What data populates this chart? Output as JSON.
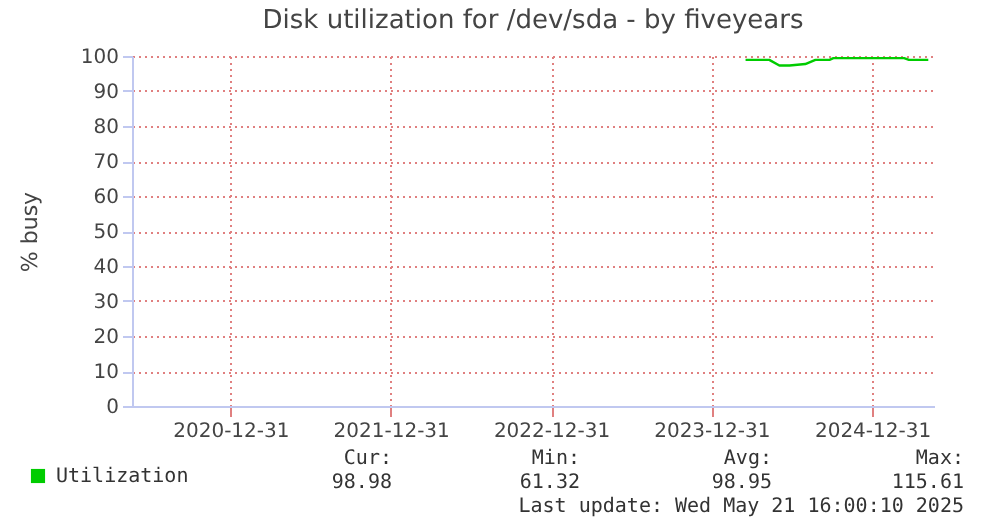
{
  "chart_data": {
    "type": "line",
    "title": "Disk utilization for /dev/sda - by fiveyears",
    "ylabel": "% busy",
    "x": [
      "2024-03-18",
      "2024-05-11",
      "2024-06-03",
      "2024-06-26",
      "2024-08-01",
      "2024-08-24",
      "2024-09-25",
      "2024-10-04",
      "2025-03-14",
      "2025-03-25",
      "2025-05-08"
    ],
    "series": [
      {
        "name": "Utilization",
        "color": "#00cc00",
        "values": [
          98.9,
          98.9,
          97.3,
          97.3,
          97.7,
          98.9,
          98.9,
          99.4,
          99.4,
          98.9,
          98.9
        ]
      }
    ],
    "xlim": [
      "2020-05-21",
      "2025-05-21"
    ],
    "xticks": [
      "2020-12-31",
      "2021-12-31",
      "2022-12-31",
      "2023-12-31",
      "2024-12-31"
    ],
    "ylim": [
      0,
      100
    ],
    "yticks": [
      0,
      10,
      20,
      30,
      40,
      50,
      60,
      70,
      80,
      90,
      100
    ],
    "grid": true,
    "legend": "bottom left",
    "marker": "none",
    "line_style": "solid",
    "annotations": [
      "Cur:",
      "Min:",
      "Avg:",
      "Max:",
      "98.98",
      "61.32",
      "98.95",
      "115.61",
      "Last update: Wed May 21 16:00:10 2025"
    ]
  }
}
